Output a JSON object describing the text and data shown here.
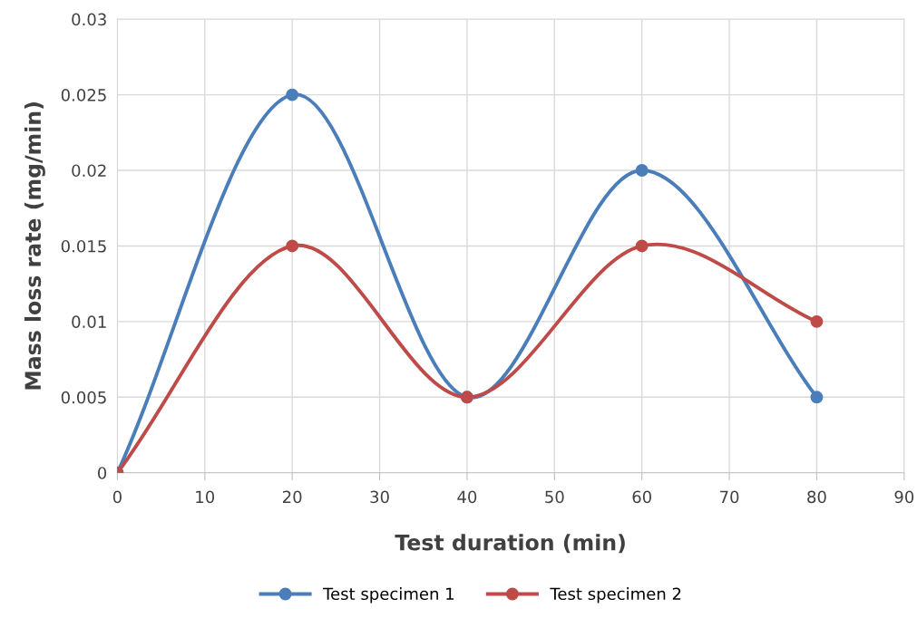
{
  "chart_data": {
    "type": "line",
    "xlabel": "Test duration (min)",
    "ylabel": "Mass loss rate (mg/min)",
    "x": [
      0,
      20,
      40,
      60,
      80
    ],
    "series": [
      {
        "name": "Test specimen 1",
        "color": "#4a7ebb",
        "values": [
          0,
          0.025,
          0.005,
          0.02,
          0.005
        ]
      },
      {
        "name": "Test specimen 2",
        "color": "#be4b48",
        "values": [
          0,
          0.015,
          0.005,
          0.015,
          0.01
        ]
      }
    ],
    "xlim": [
      0,
      90
    ],
    "xticks": [
      0,
      10,
      20,
      30,
      40,
      50,
      60,
      70,
      80,
      90
    ],
    "ylim": [
      0,
      0.03
    ],
    "yticks": [
      0,
      0.005,
      0.01,
      0.015,
      0.02,
      0.025,
      0.03
    ],
    "grid": true,
    "legend": "bottom",
    "marker": "circle",
    "line_style": "solid"
  }
}
